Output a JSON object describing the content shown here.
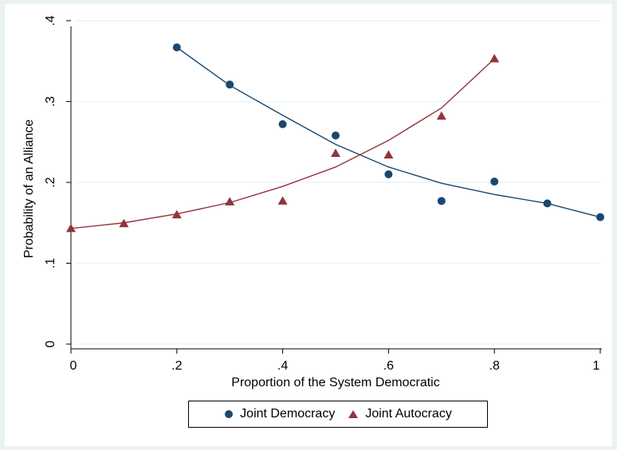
{
  "chart_data": {
    "type": "line",
    "xlabel": "Proportion of the System Democratic",
    "ylabel": "Probability of an Alliance",
    "xlim": [
      0,
      1
    ],
    "ylim": [
      0,
      0.4
    ],
    "xticks": [
      0,
      0.2,
      0.4,
      0.6,
      0.8,
      1
    ],
    "xtick_labels": [
      "0",
      ".2",
      ".4",
      ".6",
      ".8",
      "1"
    ],
    "yticks": [
      0,
      0.1,
      0.2,
      0.3,
      0.4
    ],
    "ytick_labels": [
      "0",
      ".1",
      ".2",
      ".3",
      ".4"
    ],
    "grid": true,
    "legend_position": "bottom",
    "series": [
      {
        "name": "Joint Democracy",
        "marker": "circle",
        "color": "#1a476f",
        "points": {
          "x": [
            0.2,
            0.3,
            0.4,
            0.5,
            0.6,
            0.7,
            0.8,
            0.9,
            1.0
          ],
          "y": [
            0.367,
            0.321,
            0.272,
            0.258,
            0.21,
            0.177,
            0.201,
            0.174,
            0.157
          ]
        },
        "fit": {
          "x": [
            0.2,
            0.3,
            0.4,
            0.5,
            0.6,
            0.7,
            0.8,
            0.9,
            1.0
          ],
          "y": [
            0.367,
            0.32,
            0.283,
            0.247,
            0.219,
            0.199,
            0.185,
            0.174,
            0.157
          ]
        }
      },
      {
        "name": "Joint Autocracy",
        "marker": "triangle",
        "color": "#90353b",
        "points": {
          "x": [
            0,
            0.1,
            0.2,
            0.3,
            0.4,
            0.5,
            0.6,
            0.7,
            0.8
          ],
          "y": [
            0.143,
            0.149,
            0.16,
            0.176,
            0.177,
            0.236,
            0.234,
            0.282,
            0.353
          ]
        },
        "fit": {
          "x": [
            0,
            0.1,
            0.2,
            0.3,
            0.4,
            0.5,
            0.6,
            0.7,
            0.8
          ],
          "y": [
            0.143,
            0.15,
            0.161,
            0.175,
            0.195,
            0.219,
            0.252,
            0.292,
            0.353
          ]
        }
      }
    ]
  }
}
